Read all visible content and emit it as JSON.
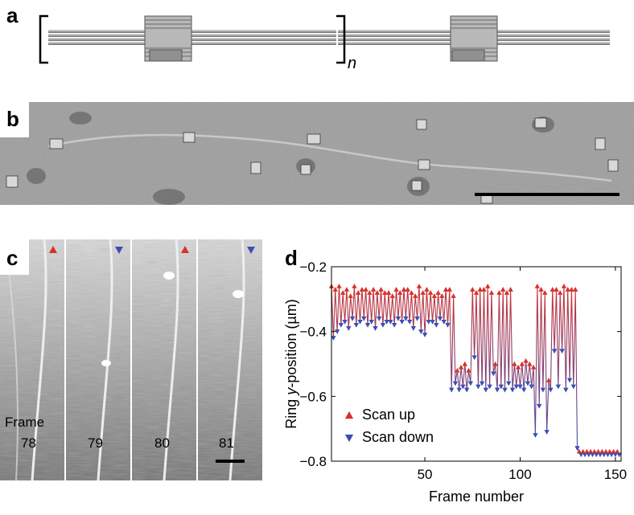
{
  "panels": {
    "a": {
      "label": "a",
      "repeat_symbol": "n"
    },
    "b": {
      "label": "b"
    },
    "c": {
      "label": "c",
      "frame_word": "Frame",
      "frames": [
        "78",
        "79",
        "80",
        "81"
      ],
      "marker_colors": [
        "#d9302a",
        "#3a4fb3",
        "#d9302a",
        "#3a4fb3"
      ]
    },
    "d": {
      "label": "d"
    }
  },
  "chart_data": {
    "type": "line",
    "xlabel": "Frame number",
    "ylabel_parts": [
      "Ring ",
      "y",
      "-position (µm)"
    ],
    "xlim": [
      1,
      153
    ],
    "ylim": [
      -0.8,
      -0.2
    ],
    "xticks": [
      50,
      100,
      150
    ],
    "yticks": [
      -0.8,
      -0.6,
      -0.4,
      -0.2
    ],
    "ytick_labels": [
      "−0.8",
      "−0.6",
      "−0.4",
      "−0.2"
    ],
    "colors": {
      "up": "#d9302a",
      "down": "#3a4fb3"
    },
    "legend": {
      "position": "bottom-left",
      "entries": [
        {
          "name": "Scan up",
          "marker": "triangle-up"
        },
        {
          "name": "Scan down",
          "marker": "triangle-down"
        }
      ]
    },
    "series": [
      {
        "name": "Scan up",
        "x": [
          1,
          3,
          5,
          7,
          9,
          11,
          13,
          15,
          17,
          19,
          21,
          23,
          25,
          27,
          29,
          31,
          33,
          35,
          37,
          39,
          41,
          43,
          45,
          47,
          49,
          51,
          53,
          55,
          57,
          59,
          61,
          63,
          65,
          67,
          69,
          71,
          73,
          75,
          77,
          79,
          81,
          83,
          85,
          87,
          89,
          91,
          93,
          95,
          97,
          99,
          101,
          103,
          105,
          107,
          109,
          111,
          113,
          115,
          117,
          119,
          121,
          123,
          125,
          127,
          129,
          131,
          133,
          135,
          137,
          139,
          141,
          143,
          145,
          147,
          149,
          151
        ],
        "y": [
          -0.26,
          -0.27,
          -0.26,
          -0.28,
          -0.27,
          -0.29,
          -0.26,
          -0.28,
          -0.27,
          -0.27,
          -0.28,
          -0.27,
          -0.28,
          -0.27,
          -0.28,
          -0.28,
          -0.29,
          -0.27,
          -0.28,
          -0.27,
          -0.27,
          -0.28,
          -0.29,
          -0.26,
          -0.28,
          -0.27,
          -0.28,
          -0.29,
          -0.28,
          -0.29,
          -0.27,
          -0.27,
          -0.29,
          -0.52,
          -0.51,
          -0.5,
          -0.52,
          -0.27,
          -0.28,
          -0.27,
          -0.27,
          -0.26,
          -0.28,
          -0.5,
          -0.28,
          -0.27,
          -0.28,
          -0.27,
          -0.5,
          -0.51,
          -0.5,
          -0.49,
          -0.5,
          -0.51,
          -0.26,
          -0.27,
          -0.28,
          -0.55,
          -0.27,
          -0.27,
          -0.28,
          -0.26,
          -0.27,
          -0.27,
          -0.27,
          -0.77,
          -0.77,
          -0.77,
          -0.77,
          -0.77,
          -0.77,
          -0.77,
          -0.77,
          -0.77,
          -0.77,
          -0.77
        ]
      },
      {
        "name": "Scan down",
        "x": [
          2,
          4,
          6,
          8,
          10,
          12,
          14,
          16,
          18,
          20,
          22,
          24,
          26,
          28,
          30,
          32,
          34,
          36,
          38,
          40,
          42,
          44,
          46,
          48,
          50,
          52,
          54,
          56,
          58,
          60,
          62,
          64,
          66,
          68,
          70,
          72,
          74,
          76,
          78,
          80,
          82,
          84,
          86,
          88,
          90,
          92,
          94,
          96,
          98,
          100,
          102,
          104,
          106,
          108,
          110,
          112,
          114,
          116,
          118,
          120,
          122,
          124,
          126,
          128,
          130,
          132,
          134,
          136,
          138,
          140,
          142,
          144,
          146,
          148,
          150,
          152
        ],
        "y": [
          -0.42,
          -0.4,
          -0.38,
          -0.37,
          -0.39,
          -0.36,
          -0.38,
          -0.37,
          -0.36,
          -0.38,
          -0.37,
          -0.39,
          -0.36,
          -0.38,
          -0.37,
          -0.37,
          -0.38,
          -0.36,
          -0.37,
          -0.36,
          -0.37,
          -0.39,
          -0.36,
          -0.4,
          -0.41,
          -0.37,
          -0.37,
          -0.38,
          -0.36,
          -0.37,
          -0.38,
          -0.58,
          -0.56,
          -0.58,
          -0.57,
          -0.58,
          -0.56,
          -0.48,
          -0.57,
          -0.56,
          -0.58,
          -0.57,
          -0.53,
          -0.58,
          -0.57,
          -0.58,
          -0.56,
          -0.58,
          -0.57,
          -0.57,
          -0.58,
          -0.56,
          -0.57,
          -0.72,
          -0.63,
          -0.58,
          -0.71,
          -0.58,
          -0.46,
          -0.57,
          -0.46,
          -0.58,
          -0.55,
          -0.57,
          -0.76,
          -0.78,
          -0.78,
          -0.78,
          -0.78,
          -0.78,
          -0.78,
          -0.78,
          -0.78,
          -0.78,
          -0.78,
          -0.78
        ]
      }
    ]
  }
}
